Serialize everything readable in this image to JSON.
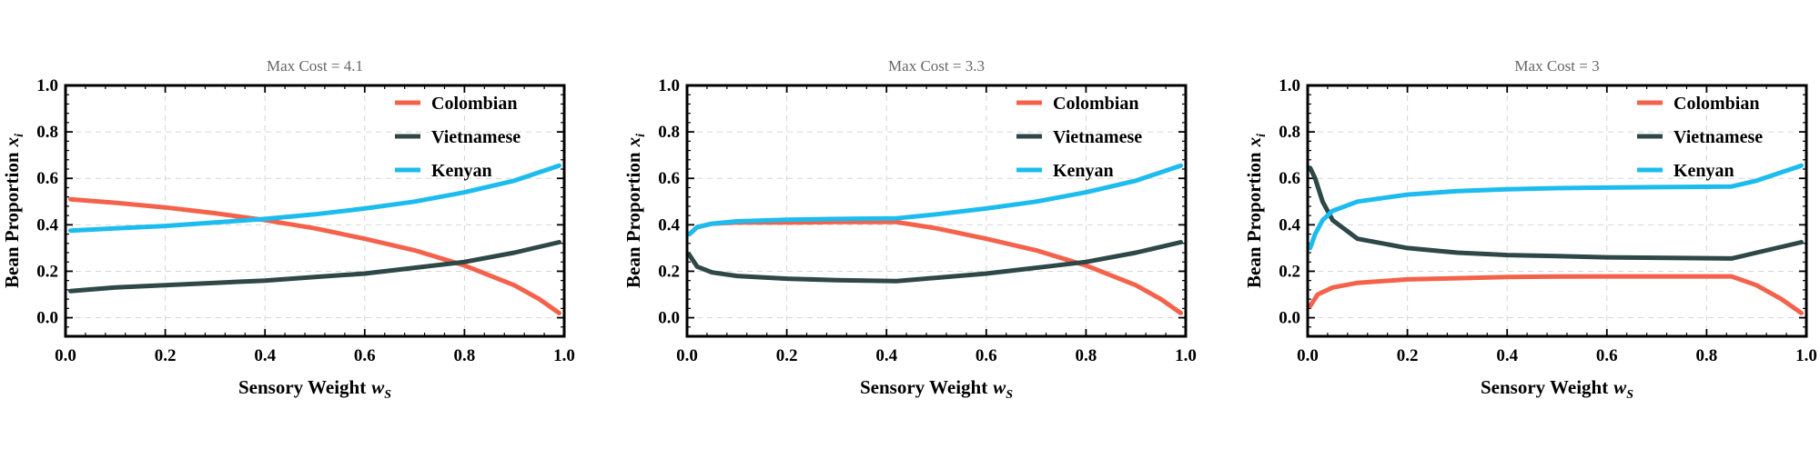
{
  "chart_data": [
    {
      "type": "line",
      "title": "Max Cost = 4.1",
      "xlabel": "Sensory Weight",
      "xlabel_var": "w",
      "xlabel_sub": "S",
      "ylabel": "Bean Proportion",
      "ylabel_var": "x",
      "ylabel_sub": "i",
      "xlim": [
        0,
        1
      ],
      "ylim": [
        -0.08,
        1
      ],
      "xticks": [
        "0.0",
        "0.2",
        "0.4",
        "0.6",
        "0.8",
        "1.0"
      ],
      "yticks": [
        "0.0",
        "0.2",
        "0.4",
        "0.6",
        "0.8",
        "1.0"
      ],
      "grid": true,
      "legend": "top-right",
      "series": [
        {
          "name": "Colombian",
          "color": "#f4624b",
          "x": [
            0.01,
            0.1,
            0.2,
            0.3,
            0.4,
            0.5,
            0.6,
            0.7,
            0.8,
            0.9,
            0.95,
            0.99
          ],
          "y": [
            0.51,
            0.495,
            0.475,
            0.45,
            0.42,
            0.385,
            0.34,
            0.29,
            0.225,
            0.14,
            0.08,
            0.02
          ]
        },
        {
          "name": "Vietnamese",
          "color": "#2e4747",
          "x": [
            0.01,
            0.1,
            0.2,
            0.3,
            0.4,
            0.5,
            0.6,
            0.7,
            0.8,
            0.9,
            0.99
          ],
          "y": [
            0.115,
            0.13,
            0.14,
            0.15,
            0.16,
            0.175,
            0.19,
            0.215,
            0.24,
            0.28,
            0.325
          ]
        },
        {
          "name": "Kenyan",
          "color": "#1cbcef",
          "x": [
            0.01,
            0.1,
            0.2,
            0.3,
            0.4,
            0.5,
            0.6,
            0.7,
            0.8,
            0.9,
            0.99
          ],
          "y": [
            0.375,
            0.385,
            0.395,
            0.41,
            0.425,
            0.445,
            0.47,
            0.5,
            0.54,
            0.59,
            0.655
          ]
        }
      ]
    },
    {
      "type": "line",
      "title": "Max Cost = 3.3",
      "xlabel": "Sensory Weight",
      "xlabel_var": "w",
      "xlabel_sub": "S",
      "ylabel": "Bean Proportion",
      "ylabel_var": "x",
      "ylabel_sub": "i",
      "xlim": [
        0,
        1
      ],
      "ylim": [
        -0.08,
        1
      ],
      "xticks": [
        "0.0",
        "0.2",
        "0.4",
        "0.6",
        "0.8",
        "1.0"
      ],
      "yticks": [
        "0.0",
        "0.2",
        "0.4",
        "0.6",
        "0.8",
        "1.0"
      ],
      "grid": true,
      "legend": "top-right",
      "series": [
        {
          "name": "Colombian",
          "color": "#f4624b",
          "x": [
            0.005,
            0.02,
            0.05,
            0.1,
            0.2,
            0.3,
            0.42,
            0.5,
            0.6,
            0.7,
            0.8,
            0.9,
            0.95,
            0.99
          ],
          "y": [
            0.36,
            0.39,
            0.405,
            0.41,
            0.41,
            0.412,
            0.412,
            0.385,
            0.34,
            0.29,
            0.225,
            0.14,
            0.08,
            0.02
          ]
        },
        {
          "name": "Vietnamese",
          "color": "#2e4747",
          "x": [
            0.005,
            0.02,
            0.05,
            0.1,
            0.2,
            0.3,
            0.42,
            0.5,
            0.6,
            0.7,
            0.8,
            0.9,
            0.99
          ],
          "y": [
            0.27,
            0.22,
            0.195,
            0.18,
            0.168,
            0.162,
            0.158,
            0.172,
            0.19,
            0.215,
            0.24,
            0.28,
            0.325
          ]
        },
        {
          "name": "Kenyan",
          "color": "#1cbcef",
          "x": [
            0.005,
            0.02,
            0.05,
            0.1,
            0.2,
            0.3,
            0.42,
            0.5,
            0.6,
            0.7,
            0.8,
            0.9,
            0.99
          ],
          "y": [
            0.36,
            0.39,
            0.405,
            0.415,
            0.422,
            0.425,
            0.428,
            0.445,
            0.47,
            0.5,
            0.54,
            0.59,
            0.655
          ]
        }
      ]
    },
    {
      "type": "line",
      "title": "Max Cost = 3",
      "xlabel": "Sensory Weight",
      "xlabel_var": "w",
      "xlabel_sub": "S",
      "ylabel": "Bean Proportion",
      "ylabel_var": "x",
      "ylabel_sub": "i",
      "xlim": [
        0,
        1
      ],
      "ylim": [
        -0.08,
        1
      ],
      "xticks": [
        "0.0",
        "0.2",
        "0.4",
        "0.6",
        "0.8",
        "1.0"
      ],
      "yticks": [
        "0.0",
        "0.2",
        "0.4",
        "0.6",
        "0.8",
        "1.0"
      ],
      "grid": true,
      "legend": "top-right",
      "series": [
        {
          "name": "Colombian",
          "color": "#f4624b",
          "x": [
            0.005,
            0.02,
            0.05,
            0.1,
            0.2,
            0.3,
            0.4,
            0.5,
            0.6,
            0.7,
            0.85,
            0.9,
            0.95,
            0.99
          ],
          "y": [
            0.05,
            0.1,
            0.13,
            0.15,
            0.165,
            0.17,
            0.175,
            0.177,
            0.178,
            0.178,
            0.178,
            0.14,
            0.08,
            0.02
          ]
        },
        {
          "name": "Vietnamese",
          "color": "#2e4747",
          "x": [
            0.005,
            0.015,
            0.03,
            0.05,
            0.1,
            0.2,
            0.3,
            0.4,
            0.5,
            0.6,
            0.7,
            0.85,
            0.9,
            0.99
          ],
          "y": [
            0.645,
            0.6,
            0.5,
            0.42,
            0.34,
            0.3,
            0.28,
            0.27,
            0.265,
            0.26,
            0.258,
            0.255,
            0.28,
            0.325
          ]
        },
        {
          "name": "Kenyan",
          "color": "#1cbcef",
          "x": [
            0.005,
            0.015,
            0.03,
            0.05,
            0.1,
            0.2,
            0.3,
            0.4,
            0.5,
            0.6,
            0.7,
            0.85,
            0.9,
            0.99
          ],
          "y": [
            0.3,
            0.36,
            0.42,
            0.46,
            0.5,
            0.53,
            0.545,
            0.553,
            0.558,
            0.56,
            0.562,
            0.565,
            0.59,
            0.655
          ]
        }
      ]
    }
  ]
}
